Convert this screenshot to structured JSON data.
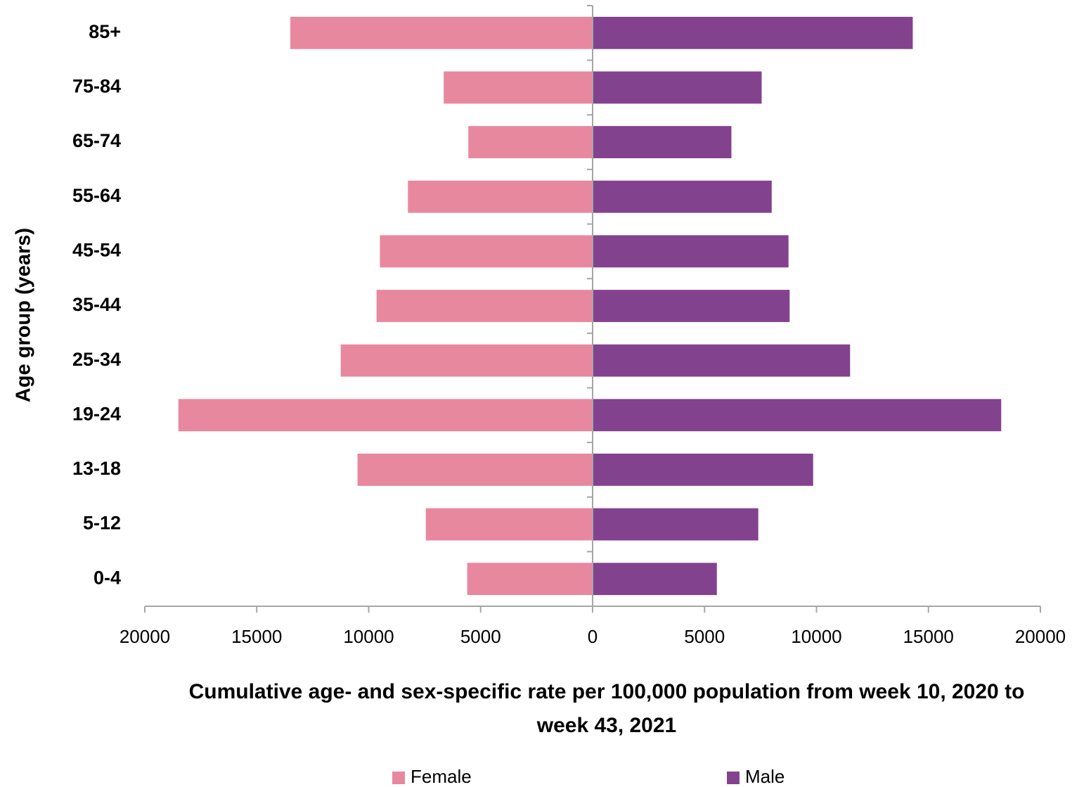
{
  "chart_data": {
    "type": "pyramid",
    "x_label": "Cumulative age- and sex-specific rate per 100,000 population from week 10, 2020 to week 43, 2021",
    "y_label": "Age group (years)",
    "categories": [
      "0-4",
      "5-12",
      "13-18",
      "19-24",
      "25-34",
      "35-44",
      "45-54",
      "55-64",
      "65-74",
      "75-84",
      "85+"
    ],
    "series": [
      {
        "name": "Female",
        "color": "#e8889f",
        "values": [
          -5600,
          -7450,
          -10500,
          -18500,
          -11250,
          -9650,
          -9500,
          -8250,
          -5550,
          -6650,
          -13500
        ]
      },
      {
        "name": "Male",
        "color": "#83428e",
        "values": [
          5550,
          7400,
          9850,
          18250,
          11500,
          8800,
          8750,
          8000,
          6200,
          7550,
          14300
        ]
      }
    ],
    "xlim": [
      -20000,
      20000
    ],
    "xticks": [
      {
        "value": -20000,
        "label": "20000"
      },
      {
        "value": -15000,
        "label": "15000"
      },
      {
        "value": -10000,
        "label": "10000"
      },
      {
        "value": -5000,
        "label": "5000"
      },
      0,
      5000,
      10000,
      15000,
      20000
    ],
    "grid": false,
    "legend": "bottom"
  }
}
